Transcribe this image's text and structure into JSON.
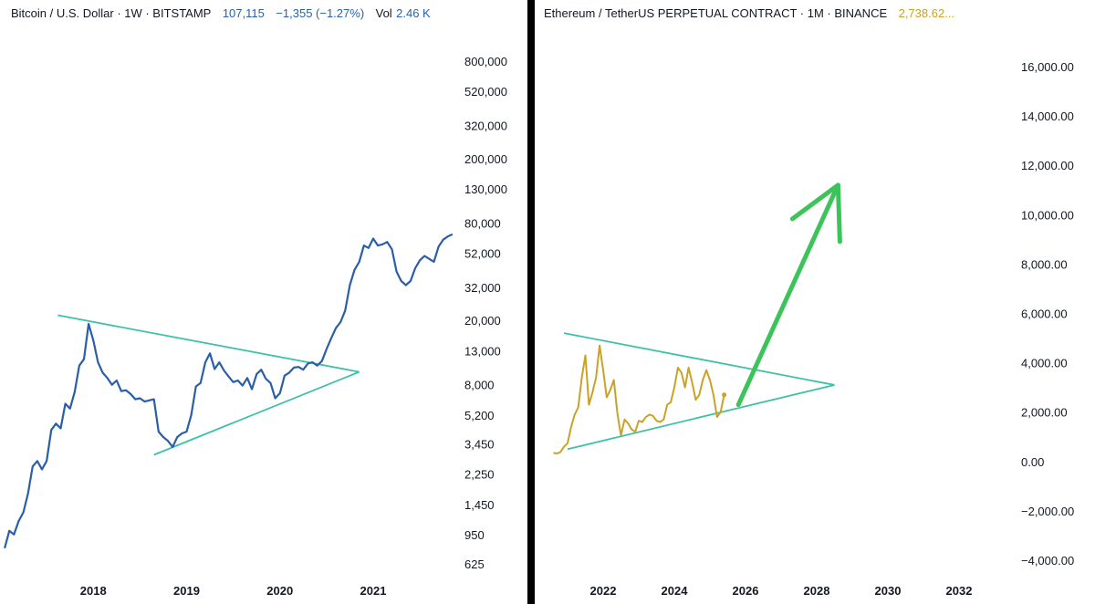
{
  "colors": {
    "btc_line": "#2a5ea8",
    "eth_line": "#c9a227",
    "trendline": "#3fc0a8",
    "arrow": "#3cc45a",
    "divider": "#000000",
    "header_blue": "#2962a8",
    "header_gold": "#c9a227"
  },
  "chart_data": [
    {
      "type": "line",
      "header": {
        "symbol": "Bitcoin / U.S. Dollar · 1W · BITSTAMP",
        "price": "107,115",
        "change": "−1,355 (−1.27%)",
        "volume_label": "Vol",
        "volume_value": "2.46 K"
      },
      "y_scale": "log",
      "y_ticks": [
        "800,000",
        "520,000",
        "320,000",
        "200,000",
        "130,000",
        "80,000",
        "52,000",
        "32,000",
        "20,000",
        "13,000",
        "8,000",
        "5,200",
        "3,450",
        "2,250",
        "1,450",
        "950",
        "625"
      ],
      "x_ticks": [
        "2018",
        "2019",
        "2020",
        "2021"
      ],
      "series": [
        {
          "x": [
            2017.05,
            2017.1,
            2017.15,
            2017.2,
            2017.25,
            2017.3,
            2017.35,
            2017.4,
            2017.45,
            2017.5,
            2017.55,
            2017.6,
            2017.65,
            2017.7,
            2017.75,
            2017.8,
            2017.85,
            2017.9,
            2017.95,
            2018.0,
            2018.05,
            2018.1,
            2018.15,
            2018.2,
            2018.25,
            2018.3,
            2018.35,
            2018.4,
            2018.45,
            2018.5,
            2018.55,
            2018.6,
            2018.65,
            2018.7,
            2018.75,
            2018.8,
            2018.85,
            2018.9,
            2018.95,
            2019.0,
            2019.05,
            2019.1,
            2019.15,
            2019.2,
            2019.25,
            2019.3,
            2019.35,
            2019.4,
            2019.45,
            2019.5,
            2019.55,
            2019.6,
            2019.65,
            2019.7,
            2019.75,
            2019.8,
            2019.85,
            2019.9,
            2019.95,
            2020.0,
            2020.05,
            2020.1,
            2020.15,
            2020.2,
            2020.25,
            2020.3,
            2020.35,
            2020.4,
            2020.45,
            2020.5,
            2020.55,
            2020.6,
            2020.65,
            2020.7,
            2020.75,
            2020.8,
            2020.85,
            2020.9,
            2020.95,
            2021.0,
            2021.05,
            2021.1,
            2021.15,
            2021.2,
            2021.25,
            2021.3,
            2021.35,
            2021.4,
            2021.45,
            2021.5,
            2021.55,
            2021.6,
            2021.65,
            2021.7,
            2021.75,
            2021.8,
            2021.85
          ],
          "values": [
            780,
            1000,
            950,
            1150,
            1300,
            1700,
            2500,
            2700,
            2400,
            2700,
            4200,
            4600,
            4300,
            6100,
            5700,
            7200,
            10500,
            11500,
            19000,
            15000,
            11000,
            9500,
            8800,
            8000,
            8500,
            7300,
            7400,
            7000,
            6500,
            6600,
            6300,
            6400,
            6500,
            4100,
            3800,
            3600,
            3300,
            3800,
            4000,
            4100,
            5200,
            7800,
            8200,
            11000,
            12500,
            10000,
            11000,
            9800,
            9000,
            8300,
            8500,
            7900,
            8800,
            7500,
            9300,
            9900,
            8700,
            8200,
            6600,
            7100,
            9100,
            9500,
            10200,
            10300,
            9900,
            10800,
            11000,
            10500,
            11200,
            13300,
            15500,
            17900,
            19500,
            23000,
            33000,
            41000,
            46000,
            58000,
            56000,
            64000,
            58000,
            59000,
            61000,
            55000,
            40000,
            35000,
            33000,
            35000,
            42000,
            47000,
            50000,
            48000,
            46000,
            57000,
            63000,
            66000,
            68000
          ]
        }
      ],
      "annotations": [
        {
          "type": "trendline",
          "from": [
            2017.62,
            21500
          ],
          "to": [
            2020.85,
            9600
          ]
        },
        {
          "type": "trendline",
          "from": [
            2018.65,
            2950
          ],
          "to": [
            2020.85,
            9600
          ]
        }
      ]
    },
    {
      "type": "line",
      "header": {
        "symbol": "Ethereum / TetherUS PERPETUAL CONTRACT · 1M · BINANCE",
        "price": "2,738.62..."
      },
      "y_scale": "linear",
      "y_ticks": [
        "16,000.00",
        "14,000.00",
        "12,000.00",
        "10,000.00",
        "8,000.00",
        "6,000.00",
        "4,000.00",
        "2,000.00",
        "0.00",
        "−2,000.00",
        "−4,000.00"
      ],
      "x_ticks": [
        "2022",
        "2024",
        "2026",
        "2028",
        "2030",
        "2032"
      ],
      "series": [
        {
          "x": [
            2020.6,
            2020.7,
            2020.8,
            2020.9,
            2021.0,
            2021.1,
            2021.2,
            2021.3,
            2021.4,
            2021.5,
            2021.6,
            2021.7,
            2021.8,
            2021.9,
            2022.0,
            2022.1,
            2022.2,
            2022.3,
            2022.4,
            2022.5,
            2022.6,
            2022.7,
            2022.8,
            2022.9,
            2023.0,
            2023.1,
            2023.2,
            2023.3,
            2023.4,
            2023.5,
            2023.6,
            2023.7,
            2023.8,
            2023.9,
            2024.0,
            2024.1,
            2024.2,
            2024.3,
            2024.4,
            2024.5,
            2024.6,
            2024.7,
            2024.8,
            2024.9,
            2025.0,
            2025.1,
            2025.2,
            2025.3,
            2025.4
          ],
          "values": [
            350,
            320,
            380,
            600,
            740,
            1400,
            1900,
            2200,
            3400,
            4300,
            2300,
            2800,
            3400,
            4700,
            3700,
            2600,
            2900,
            3300,
            1950,
            1050,
            1700,
            1550,
            1300,
            1200,
            1650,
            1600,
            1800,
            1900,
            1850,
            1650,
            1600,
            1700,
            2300,
            2400,
            3000,
            3800,
            3600,
            3000,
            3800,
            3200,
            2500,
            2700,
            3300,
            3700,
            3300,
            2700,
            1800,
            2000,
            2700
          ]
        }
      ],
      "annotations": [
        {
          "type": "trendline",
          "from": [
            2020.9,
            5200
          ],
          "to": [
            2028.5,
            3100
          ]
        },
        {
          "type": "trendline",
          "from": [
            2021.0,
            500
          ],
          "to": [
            2028.5,
            3100
          ]
        },
        {
          "type": "arrow",
          "from": [
            2025.8,
            2300
          ],
          "to": [
            2028.6,
            11200
          ]
        }
      ]
    }
  ]
}
